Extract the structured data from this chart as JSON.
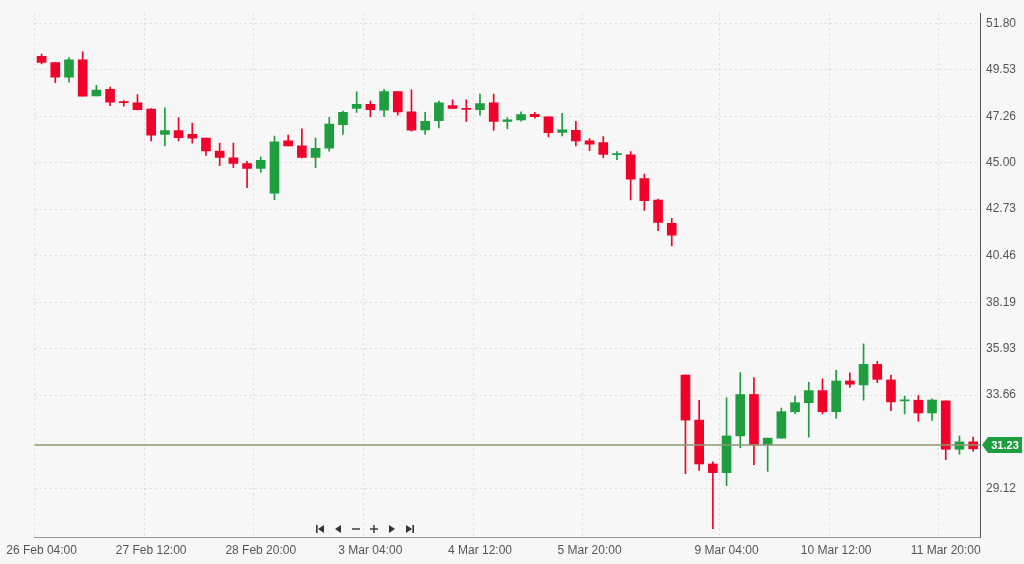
{
  "chart_data": {
    "type": "candlestick",
    "categories": [
      "26 Feb 04:00",
      null,
      null,
      null,
      null,
      null,
      null,
      null,
      "27 Feb 12:00",
      null,
      null,
      null,
      null,
      null,
      null,
      null,
      "28 Feb 20:00",
      null,
      null,
      null,
      null,
      null,
      null,
      null,
      "3 Mar 04:00",
      null,
      null,
      null,
      null,
      null,
      null,
      null,
      "4 Mar 12:00",
      null,
      null,
      null,
      null,
      null,
      null,
      null,
      "5 Mar 20:00",
      null,
      null,
      null,
      null,
      null,
      null,
      null,
      null,
      null,
      "9 Mar 04:00",
      null,
      null,
      null,
      null,
      null,
      null,
      null,
      "10 Mar 12:00",
      null,
      null,
      null,
      null,
      null,
      null,
      null,
      "11 Mar 20:00",
      null,
      null
    ],
    "ohlc": [
      [
        50.19,
        50.29,
        49.81,
        49.89
      ],
      [
        49.88,
        49.88,
        48.9,
        49.17
      ],
      [
        49.17,
        50.13,
        48.93,
        50.02
      ],
      [
        50.02,
        50.4,
        48.24,
        48.24
      ],
      [
        48.25,
        48.77,
        48.25,
        48.54
      ],
      [
        48.58,
        48.69,
        47.78,
        47.95
      ],
      [
        47.96,
        48.03,
        47.76,
        47.93
      ],
      [
        47.92,
        48.32,
        47.57,
        47.59
      ],
      [
        47.61,
        47.64,
        46.06,
        46.34
      ],
      [
        46.38,
        47.67,
        45.82,
        46.57
      ],
      [
        46.57,
        47.2,
        46.06,
        46.22
      ],
      [
        46.38,
        46.93,
        45.95,
        46.2
      ],
      [
        46.2,
        46.2,
        45.35,
        45.57
      ],
      [
        45.56,
        45.95,
        44.85,
        45.26
      ],
      [
        45.24,
        45.95,
        44.75,
        44.96
      ],
      [
        44.96,
        45.07,
        43.78,
        44.72
      ],
      [
        44.72,
        45.27,
        44.52,
        45.11
      ],
      [
        43.51,
        46.3,
        43.19,
        46.01
      ],
      [
        46.06,
        46.34,
        45.81,
        45.81
      ],
      [
        45.82,
        46.65,
        45.23,
        45.26
      ],
      [
        45.26,
        46.2,
        44.75,
        45.7
      ],
      [
        45.71,
        47.21,
        45.56,
        46.88
      ],
      [
        46.85,
        47.51,
        46.38,
        47.46
      ],
      [
        47.64,
        48.46,
        47.45,
        47.84
      ],
      [
        47.84,
        48.0,
        47.24,
        47.59
      ],
      [
        47.56,
        48.58,
        47.24,
        48.47
      ],
      [
        48.47,
        48.47,
        47.32,
        47.48
      ],
      [
        47.48,
        48.55,
        46.53,
        46.58
      ],
      [
        46.6,
        47.45,
        46.38,
        47.01
      ],
      [
        47.05,
        48.0,
        46.69,
        47.92
      ],
      [
        47.78,
        48.06,
        47.64,
        47.64
      ],
      [
        47.62,
        48.06,
        47.01,
        47.6
      ],
      [
        47.59,
        48.35,
        47.32,
        47.88
      ],
      [
        47.92,
        48.35,
        46.57,
        47.01
      ],
      [
        47.01,
        47.2,
        46.65,
        47.09
      ],
      [
        47.09,
        47.48,
        47.02,
        47.34
      ],
      [
        47.36,
        47.46,
        47.17,
        47.24
      ],
      [
        47.24,
        47.24,
        46.25,
        46.46
      ],
      [
        46.47,
        47.4,
        46.3,
        46.6
      ],
      [
        46.58,
        47.01,
        45.82,
        46.06
      ],
      [
        46.06,
        46.17,
        45.59,
        45.9
      ],
      [
        45.98,
        46.27,
        45.24,
        45.4
      ],
      [
        45.39,
        45.54,
        45.15,
        45.42
      ],
      [
        45.38,
        45.54,
        43.18,
        44.2
      ],
      [
        44.22,
        44.44,
        42.67,
        43.15
      ],
      [
        43.18,
        43.22,
        41.68,
        42.09
      ],
      [
        42.04,
        42.28,
        40.94,
        41.46
      ],
      [
        34.64,
        34.64,
        29.83,
        32.44
      ],
      [
        32.44,
        33.41,
        29.99,
        30.3
      ],
      [
        30.3,
        30.41,
        27.15,
        29.88
      ],
      [
        29.88,
        33.53,
        29.25,
        31.67
      ],
      [
        31.67,
        34.76,
        31.09,
        33.69
      ],
      [
        33.69,
        34.52,
        30.27,
        31.25
      ],
      [
        31.25,
        31.56,
        29.94,
        31.56
      ],
      [
        31.56,
        33.03,
        31.56,
        32.85
      ],
      [
        32.85,
        33.61,
        32.75,
        33.29
      ],
      [
        33.29,
        34.29,
        31.61,
        33.88
      ],
      [
        33.88,
        34.45,
        32.75,
        32.85
      ],
      [
        32.85,
        34.87,
        32.54,
        34.35
      ],
      [
        34.35,
        34.75,
        34.04,
        34.19
      ],
      [
        34.16,
        36.16,
        33.41,
        35.16
      ],
      [
        35.16,
        35.31,
        34.27,
        34.43
      ],
      [
        34.4,
        34.64,
        32.9,
        33.33
      ],
      [
        33.38,
        33.61,
        32.75,
        33.43
      ],
      [
        33.41,
        33.64,
        32.38,
        32.79
      ],
      [
        32.79,
        33.48,
        32.43,
        33.42
      ],
      [
        33.38,
        33.38,
        30.51,
        31.02
      ],
      [
        31.02,
        31.67,
        30.77,
        31.38
      ],
      [
        31.38,
        31.61,
        30.93,
        31.04
      ]
    ],
    "colors": [
      "#f0022a",
      "#f0022a",
      "#1e9e3e",
      "#f0022a",
      "#1e9e3e",
      "#f0022a",
      "#f0022a",
      "#f0022a",
      "#f0022a",
      "#1e9e3e",
      "#f0022a",
      "#f0022a",
      "#f0022a",
      "#f0022a",
      "#f0022a",
      "#f0022a",
      "#1e9e3e",
      "#1e9e3e",
      "#f0022a",
      "#f0022a",
      "#1e9e3e",
      "#1e9e3e",
      "#1e9e3e",
      "#1e9e3e",
      "#f0022a",
      "#1e9e3e",
      "#f0022a",
      "#f0022a",
      "#1e9e3e",
      "#1e9e3e",
      "#f0022a",
      "#f0022a",
      "#1e9e3e",
      "#f0022a",
      "#1e9e3e",
      "#1e9e3e",
      "#f0022a",
      "#f0022a",
      "#1e9e3e",
      "#f0022a",
      "#f0022a",
      "#f0022a",
      "#1e9e3e",
      "#f0022a",
      "#f0022a",
      "#f0022a",
      "#f0022a",
      "#f0022a",
      "#f0022a",
      "#f0022a",
      "#1e9e3e",
      "#1e9e3e",
      "#f0022a",
      "#1e9e3e",
      "#1e9e3e",
      "#1e9e3e",
      "#1e9e3e",
      "#f0022a",
      "#1e9e3e",
      "#f0022a",
      "#1e9e3e",
      "#f0022a",
      "#f0022a",
      "#1e9e3e",
      "#f0022a",
      "#1e9e3e",
      "#f0022a",
      "#1e9e3e",
      "#f0022a"
    ],
    "ylim": [
      26.71,
      52.29
    ],
    "yticks": [
      {
        "value": 51.8,
        "label": "51.80"
      },
      49.53,
      47.26,
      {
        "value": 45,
        "label": "45.00"
      },
      42.73,
      40.46,
      38.19,
      35.93,
      33.66,
      29.12
    ],
    "grid": true,
    "ref_lines": [
      {
        "axis": "y",
        "value": 31.23,
        "label": "31.23",
        "color": "#8c9a70"
      }
    ]
  }
}
